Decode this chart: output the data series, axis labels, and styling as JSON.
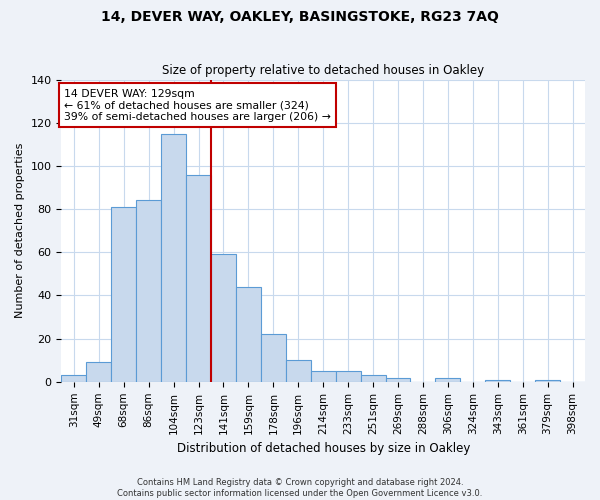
{
  "title1": "14, DEVER WAY, OAKLEY, BASINGSTOKE, RG23 7AQ",
  "title2": "Size of property relative to detached houses in Oakley",
  "xlabel": "Distribution of detached houses by size in Oakley",
  "ylabel": "Number of detached properties",
  "bar_labels": [
    "31sqm",
    "49sqm",
    "68sqm",
    "86sqm",
    "104sqm",
    "123sqm",
    "141sqm",
    "159sqm",
    "178sqm",
    "196sqm",
    "214sqm",
    "233sqm",
    "251sqm",
    "269sqm",
    "288sqm",
    "306sqm",
    "324sqm",
    "343sqm",
    "361sqm",
    "379sqm",
    "398sqm"
  ],
  "bar_values": [
    3,
    9,
    81,
    84,
    115,
    96,
    59,
    44,
    22,
    10,
    5,
    5,
    3,
    2,
    0,
    2,
    0,
    1,
    0,
    1,
    0
  ],
  "bar_color": "#c8d9ed",
  "bar_edge_color": "#5b9bd5",
  "vline_x": 5.5,
  "vline_color": "#c00000",
  "annotation_text": "14 DEVER WAY: 129sqm\n← 61% of detached houses are smaller (324)\n39% of semi-detached houses are larger (206) →",
  "annotation_box_color": "white",
  "annotation_box_edge_color": "#c00000",
  "ylim": [
    0,
    140
  ],
  "footer1": "Contains HM Land Registry data © Crown copyright and database right 2024.",
  "footer2": "Contains public sector information licensed under the Open Government Licence v3.0.",
  "background_color": "#eef2f8",
  "plot_bg_color": "white",
  "grid_color": "#c8d9ed"
}
